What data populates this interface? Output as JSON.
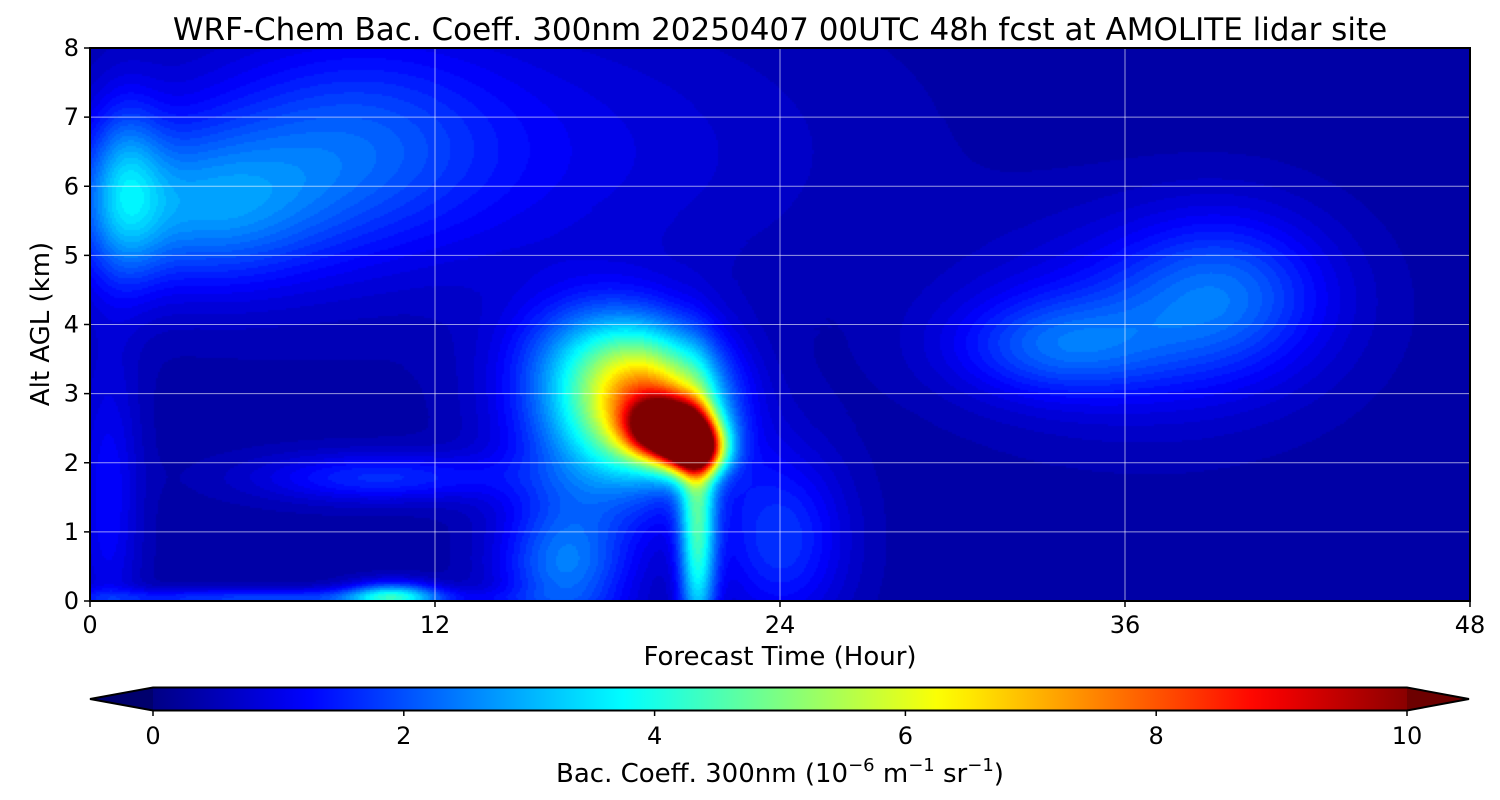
{
  "chart_data": {
    "type": "heatmap",
    "title": "WRF-Chem Bac. Coeff. 300nm  20250407 00UTC 48h fcst at AMOLITE lidar site",
    "xlabel": "Forecast Time (Hour)",
    "ylabel": "Alt AGL (km)",
    "xlim": [
      0,
      48
    ],
    "ylim": [
      0,
      8
    ],
    "xticks": [
      0,
      12,
      24,
      36,
      48
    ],
    "yticks": [
      0,
      1,
      2,
      3,
      4,
      5,
      6,
      7,
      8
    ],
    "xtick_labels": [
      "0",
      "12",
      "24",
      "36",
      "48"
    ],
    "ytick_labels": [
      "0",
      "1",
      "2",
      "3",
      "4",
      "5",
      "6",
      "7",
      "8"
    ],
    "grid": true,
    "colormap": "jet",
    "colorbar": {
      "label_main": "Bac. Coeff. 300nm  (10",
      "label_exp1": "−6",
      "label_mid": " m",
      "label_exp2": "−1",
      "label_end": " sr",
      "label_exp3": "−1",
      "label_close": ")",
      "range": [
        0,
        10
      ],
      "ticks": [
        0,
        2,
        4,
        6,
        8,
        10
      ],
      "tick_labels": [
        "0",
        "2",
        "4",
        "6",
        "8",
        "10"
      ],
      "extend": "both",
      "orientation": "horizontal"
    },
    "field_features": [
      {
        "t": 20.1,
        "z": 2.5,
        "value": 9.5,
        "sx": 0.9,
        "sz": 0.28
      },
      {
        "t": 21.0,
        "z": 2.2,
        "value": 8.0,
        "sx": 0.7,
        "sz": 0.25
      },
      {
        "t": 19.5,
        "z": 2.9,
        "value": 4.5,
        "sx": 1.6,
        "sz": 0.6
      },
      {
        "t": 18.3,
        "z": 2.6,
        "value": 2.8,
        "sx": 2.4,
        "sz": 0.9
      },
      {
        "t": 17.8,
        "z": 3.6,
        "value": 1.6,
        "sx": 2.0,
        "sz": 0.6
      },
      {
        "t": 21.1,
        "z": 1.0,
        "value": 3.6,
        "sx": 0.45,
        "sz": 1.2
      },
      {
        "t": 16.5,
        "z": 0.5,
        "value": 2.0,
        "sx": 1.6,
        "sz": 0.7
      },
      {
        "t": 24.0,
        "z": 0.9,
        "value": 1.4,
        "sx": 1.6,
        "sz": 0.9
      },
      {
        "t": 10.5,
        "z": 0.07,
        "value": 3.0,
        "sx": 1.1,
        "sz": 0.15
      },
      {
        "t": 6.0,
        "z": 0.05,
        "value": 1.5,
        "sx": 5.0,
        "sz": 0.1
      },
      {
        "t": 10.0,
        "z": 1.8,
        "value": 1.3,
        "sx": 3.0,
        "sz": 0.25
      },
      {
        "t": 3.5,
        "z": 5.7,
        "value": 2.0,
        "sx": 3.2,
        "sz": 0.8
      },
      {
        "t": 1.2,
        "z": 6.0,
        "value": 1.6,
        "sx": 0.9,
        "sz": 0.9
      },
      {
        "t": 9.0,
        "z": 6.6,
        "value": 1.2,
        "sx": 3.5,
        "sz": 1.0
      },
      {
        "t": 39.5,
        "z": 4.5,
        "value": 1.4,
        "sx": 2.5,
        "sz": 0.8
      },
      {
        "t": 33.5,
        "z": 3.7,
        "value": 1.3,
        "sx": 2.5,
        "sz": 0.5
      },
      {
        "t": 36.5,
        "z": 4.0,
        "value": 1.0,
        "sx": 4.0,
        "sz": 1.0
      },
      {
        "t": 0.6,
        "z": 1.5,
        "value": 0.9,
        "sx": 0.8,
        "sz": 1.6
      },
      {
        "t": 14.0,
        "z": 6.5,
        "value": 0.7,
        "sx": 8.0,
        "sz": 1.5
      }
    ],
    "background_value": 0.4
  }
}
